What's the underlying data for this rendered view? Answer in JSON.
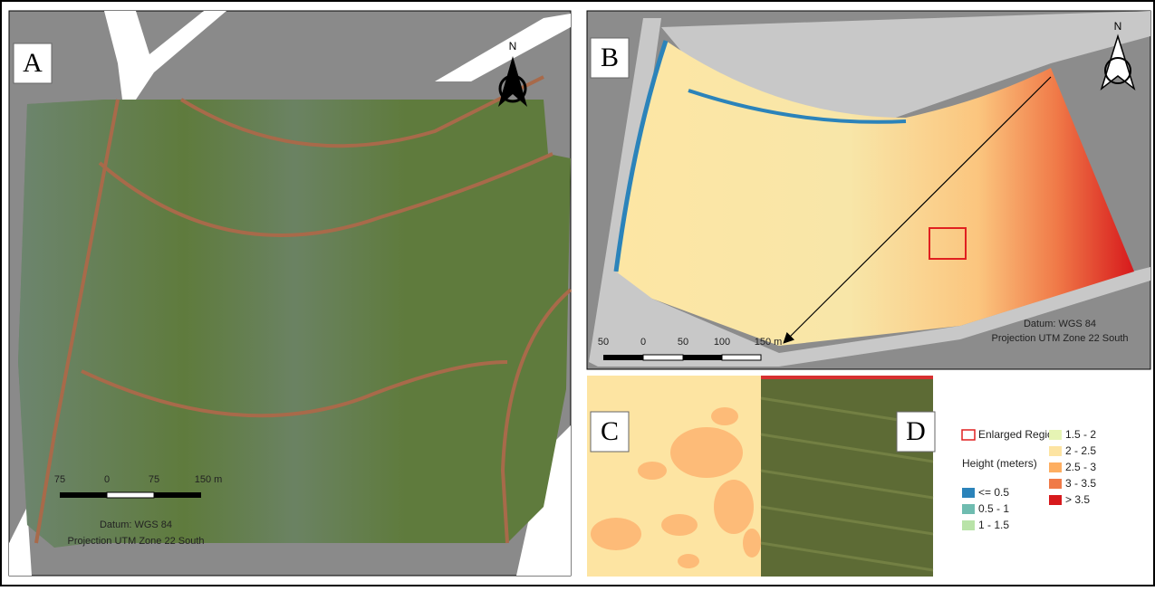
{
  "panel_a": {
    "label": "A",
    "north": "N",
    "scale": [
      "75",
      "0",
      "75",
      "150 m"
    ],
    "datum": "Datum: WGS 84",
    "projection": "Projection UTM Zone 22 South"
  },
  "panel_b": {
    "label": "B",
    "north": "N",
    "scale": [
      "50",
      "0",
      "50",
      "100",
      "150 m"
    ],
    "datum": "Datum: WGS 84",
    "projection": "Projection UTM Zone 22 South"
  },
  "panel_c": {
    "label": "C"
  },
  "panel_d": {
    "label": "D"
  },
  "legend": {
    "region": "Enlarged Region",
    "title": "Height (meters)",
    "classes": [
      {
        "label": "<= 0.5",
        "color": "#2b83ba"
      },
      {
        "label": "0.5 - 1",
        "color": "#6fbcb0"
      },
      {
        "label": "1 - 1.5",
        "color": "#b9e3a8"
      },
      {
        "label": "1.5 - 2",
        "color": "#e6f4b4"
      },
      {
        "label": "2 - 2.5",
        "color": "#fde4a2"
      },
      {
        "label": "2.5 - 3",
        "color": "#fdae61"
      },
      {
        "label": "3 - 3.5",
        "color": "#f07a48"
      },
      {
        "label": "> 3.5",
        "color": "#d7191c"
      }
    ]
  }
}
